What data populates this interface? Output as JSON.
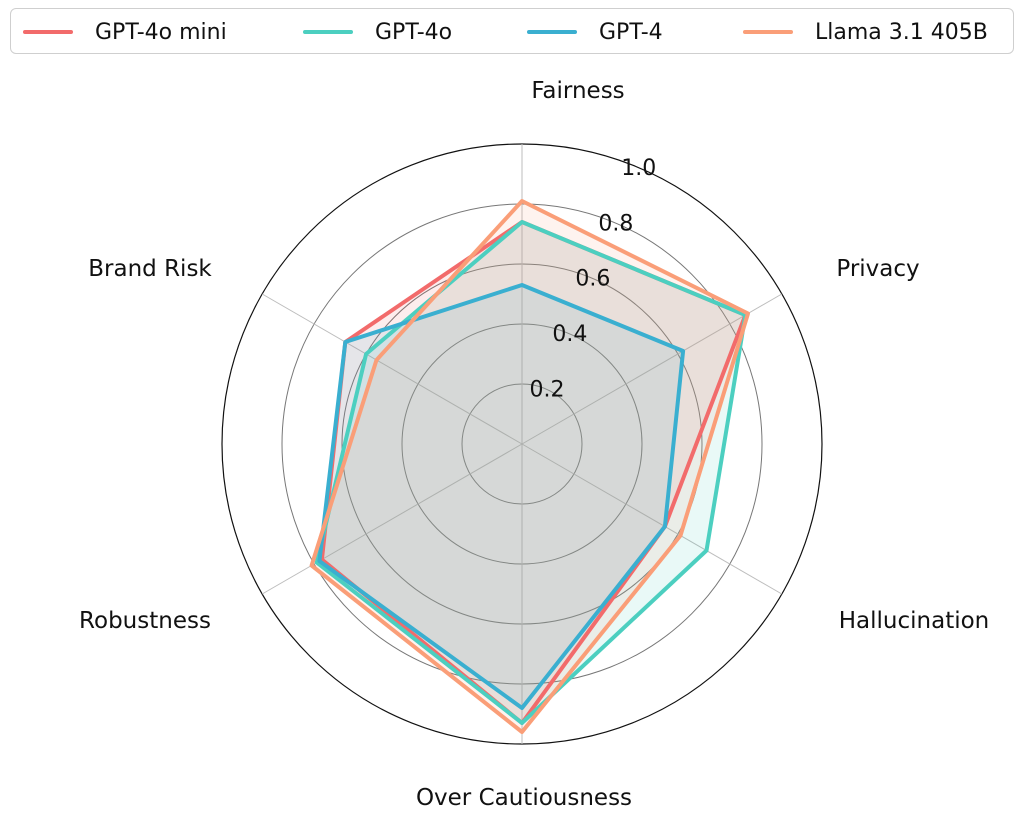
{
  "chart_data": {
    "type": "radar",
    "title": "",
    "axes": [
      "Fairness",
      "Privacy",
      "Hallucination",
      "Over Cautiousness",
      "Robustness",
      "Brand Risk"
    ],
    "radial_ticks": [
      "0.2",
      "0.4",
      "0.6",
      "0.8",
      "1.0"
    ],
    "rlim": [
      0,
      1.0
    ],
    "legend_position": "top",
    "series": [
      {
        "name": "GPT-4o mini",
        "color": "#F26B6B",
        "fill": "#F26B6B",
        "values": [
          0.74,
          0.86,
          0.55,
          0.93,
          0.77,
          0.68
        ]
      },
      {
        "name": "GPT-4o",
        "color": "#4CCFC0",
        "fill": "#4CCFC0",
        "values": [
          0.74,
          0.86,
          0.71,
          0.93,
          0.79,
          0.6
        ]
      },
      {
        "name": "GPT-4",
        "color": "#3AAFD0",
        "fill": "#3AAFD0",
        "values": [
          0.53,
          0.62,
          0.55,
          0.88,
          0.78,
          0.68
        ]
      },
      {
        "name": "Llama 3.1 405B",
        "color": "#FA9E78",
        "fill": "#FA9E78",
        "values": [
          0.81,
          0.87,
          0.61,
          0.96,
          0.81,
          0.56
        ]
      }
    ]
  }
}
